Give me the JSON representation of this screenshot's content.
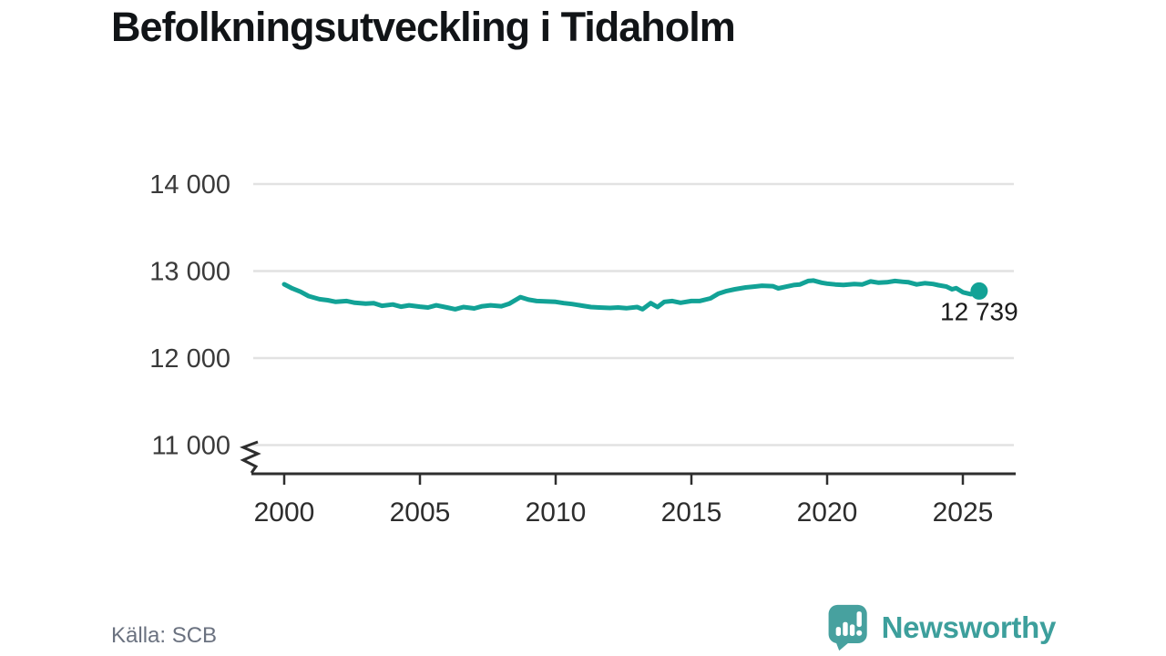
{
  "title": "Befolkningsutveckling i Tidaholm",
  "source": "Källa: SCB",
  "logo": {
    "text": "Newsworthy",
    "icon": "newsworthy-speech-bubble-bar-chart-icon",
    "icon_color": "#47a19f",
    "text_color": "#3d9f9c"
  },
  "chart_data": {
    "type": "line",
    "title": "Befolkningsutveckling i Tidaholm",
    "xlabel": "",
    "ylabel": "",
    "grid": true,
    "legend_position": "none",
    "line_color": "#12a296",
    "x_ticks": [
      {
        "value": 2000,
        "label": "2000"
      },
      {
        "value": 2005,
        "label": "2005"
      },
      {
        "value": 2010,
        "label": "2010"
      },
      {
        "value": 2015,
        "label": "2015"
      },
      {
        "value": 2020,
        "label": "2020"
      },
      {
        "value": 2025,
        "label": "2025"
      }
    ],
    "y_ticks": [
      {
        "value": 14000,
        "label": "14 000"
      },
      {
        "value": 13000,
        "label": "13 000"
      },
      {
        "value": 12000,
        "label": "12 000"
      },
      {
        "value": 11000,
        "label": "11 000"
      }
    ],
    "xlim": [
      1998.8,
      2027
    ],
    "ylim": [
      11000,
      14000
    ],
    "y_axis_break": true,
    "annotation": {
      "x": 2025.6,
      "value": 12739,
      "label": "12 739"
    },
    "series": [
      {
        "name": "Folkmängd Tidaholm",
        "points": [
          [
            2000.0,
            12848
          ],
          [
            2000.3,
            12800
          ],
          [
            2000.6,
            12762
          ],
          [
            2000.9,
            12712
          ],
          [
            2001.3,
            12676
          ],
          [
            2001.6,
            12665
          ],
          [
            2001.9,
            12646
          ],
          [
            2002.3,
            12656
          ],
          [
            2002.6,
            12636
          ],
          [
            2003.0,
            12626
          ],
          [
            2003.3,
            12631
          ],
          [
            2003.6,
            12601
          ],
          [
            2004.0,
            12616
          ],
          [
            2004.3,
            12591
          ],
          [
            2004.6,
            12606
          ],
          [
            2005.0,
            12591
          ],
          [
            2005.3,
            12581
          ],
          [
            2005.6,
            12606
          ],
          [
            2006.0,
            12581
          ],
          [
            2006.3,
            12561
          ],
          [
            2006.6,
            12586
          ],
          [
            2007.0,
            12571
          ],
          [
            2007.3,
            12596
          ],
          [
            2007.6,
            12606
          ],
          [
            2008.0,
            12596
          ],
          [
            2008.3,
            12626
          ],
          [
            2008.7,
            12700
          ],
          [
            2009.0,
            12671
          ],
          [
            2009.3,
            12656
          ],
          [
            2009.6,
            12651
          ],
          [
            2010.0,
            12646
          ],
          [
            2010.3,
            12631
          ],
          [
            2010.6,
            12621
          ],
          [
            2011.0,
            12601
          ],
          [
            2011.3,
            12586
          ],
          [
            2011.6,
            12581
          ],
          [
            2012.0,
            12576
          ],
          [
            2012.3,
            12581
          ],
          [
            2012.6,
            12573
          ],
          [
            2013.0,
            12586
          ],
          [
            2013.2,
            12561
          ],
          [
            2013.5,
            12631
          ],
          [
            2013.75,
            12586
          ],
          [
            2014.0,
            12646
          ],
          [
            2014.3,
            12656
          ],
          [
            2014.6,
            12636
          ],
          [
            2015.0,
            12656
          ],
          [
            2015.3,
            12656
          ],
          [
            2015.7,
            12686
          ],
          [
            2016.0,
            12741
          ],
          [
            2016.3,
            12771
          ],
          [
            2016.6,
            12791
          ],
          [
            2017.0,
            12811
          ],
          [
            2017.3,
            12821
          ],
          [
            2017.6,
            12831
          ],
          [
            2018.0,
            12826
          ],
          [
            2018.2,
            12801
          ],
          [
            2018.5,
            12821
          ],
          [
            2018.8,
            12841
          ],
          [
            2019.0,
            12846
          ],
          [
            2019.3,
            12886
          ],
          [
            2019.5,
            12891
          ],
          [
            2019.8,
            12866
          ],
          [
            2020.0,
            12856
          ],
          [
            2020.3,
            12846
          ],
          [
            2020.6,
            12841
          ],
          [
            2021.0,
            12851
          ],
          [
            2021.3,
            12846
          ],
          [
            2021.6,
            12881
          ],
          [
            2021.9,
            12866
          ],
          [
            2022.2,
            12871
          ],
          [
            2022.5,
            12886
          ],
          [
            2022.8,
            12876
          ],
          [
            2023.0,
            12871
          ],
          [
            2023.3,
            12846
          ],
          [
            2023.6,
            12861
          ],
          [
            2023.9,
            12851
          ],
          [
            2024.1,
            12838
          ],
          [
            2024.4,
            12821
          ],
          [
            2024.6,
            12791
          ],
          [
            2024.75,
            12803
          ],
          [
            2025.0,
            12756
          ],
          [
            2025.3,
            12734
          ],
          [
            2025.6,
            12739
          ]
        ]
      }
    ]
  }
}
